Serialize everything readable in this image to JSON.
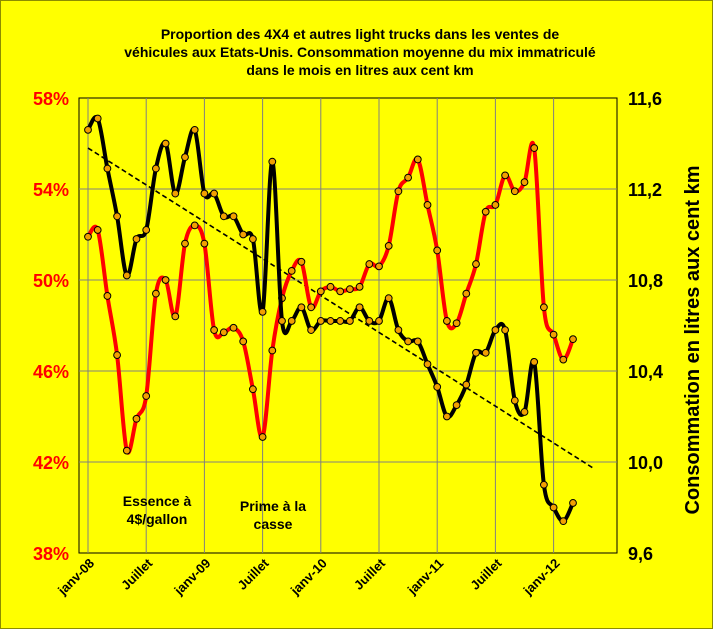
{
  "chart_data": {
    "type": "line",
    "title": [
      "Proportion des 4X4 et autres  light trucks  dans les ventes de",
      "véhicules aux Etats-Unis. Consommation moyenne du mix immatriculé",
      "dans le mois en litres  aux cent km"
    ],
    "ylabel_right": "Consommation en litres aux cent km",
    "x_tick_labels": [
      "janv-08",
      "Juillet",
      "janv-09",
      "Juillet",
      "janv-10",
      "Juillet",
      "janv-11",
      "Juillet",
      "janv-12"
    ],
    "y_left": {
      "ticks": [
        "38%",
        "42%",
        "46%",
        "50%",
        "54%",
        "58%"
      ],
      "ylim": [
        38,
        58
      ],
      "color": "#ff0000"
    },
    "y_right": {
      "ticks": [
        "9,6",
        "10,0",
        "10,4",
        "10,8",
        "11,2",
        "11,6"
      ],
      "ylim": [
        9.6,
        11.6
      ],
      "color": "#000000"
    },
    "grid": true,
    "annotations": [
      {
        "lines": [
          "Essence à",
          "4$/gallon"
        ]
      },
      {
        "lines": [
          "Prime à la",
          "casse"
        ]
      }
    ],
    "series": [
      {
        "color": "#ff0000",
        "axis": "left",
        "x": [
          0,
          1,
          2,
          3,
          4,
          5,
          6,
          7,
          8,
          9,
          10,
          11,
          12,
          13,
          14,
          15,
          16,
          17,
          18,
          19,
          20,
          21,
          22,
          23,
          24,
          25,
          26,
          27,
          28,
          29,
          30,
          31,
          32,
          33,
          34,
          35,
          36,
          37,
          38,
          39,
          40,
          41,
          42,
          43,
          44,
          45,
          46,
          47,
          48,
          49,
          50
        ],
        "values": [
          51.9,
          52.2,
          49.3,
          46.7,
          42.5,
          43.9,
          44.9,
          49.4,
          50.0,
          48.4,
          51.6,
          52.4,
          51.6,
          47.8,
          47.7,
          47.9,
          47.3,
          45.2,
          43.1,
          46.9,
          49.2,
          50.4,
          50.8,
          48.8,
          49.5,
          49.7,
          49.5,
          49.6,
          49.7,
          50.7,
          50.6,
          51.5,
          53.9,
          54.5,
          55.3,
          53.3,
          51.3,
          48.2,
          48.1,
          49.4,
          50.7,
          53.0,
          53.3,
          54.6,
          53.9,
          54.3,
          55.8,
          48.8,
          47.6,
          46.5,
          47.4
        ]
      },
      {
        "color": "#000000",
        "axis": "right",
        "x": [
          0,
          1,
          2,
          3,
          4,
          5,
          6,
          7,
          8,
          9,
          10,
          11,
          12,
          13,
          14,
          15,
          16,
          17,
          18,
          19,
          20,
          21,
          22,
          23,
          24,
          25,
          26,
          27,
          28,
          29,
          30,
          31,
          32,
          33,
          34,
          35,
          36,
          37,
          38,
          39,
          40,
          41,
          42,
          43,
          44,
          45,
          46,
          47,
          48,
          49,
          50
        ],
        "values": [
          11.46,
          11.51,
          11.29,
          11.08,
          10.82,
          10.98,
          11.02,
          11.29,
          11.4,
          11.18,
          11.34,
          11.46,
          11.18,
          11.18,
          11.08,
          11.08,
          11.0,
          10.98,
          10.66,
          11.32,
          10.62,
          10.62,
          10.68,
          10.58,
          10.62,
          10.62,
          10.62,
          10.62,
          10.68,
          10.62,
          10.62,
          10.72,
          10.58,
          10.53,
          10.53,
          10.43,
          10.33,
          10.2,
          10.25,
          10.34,
          10.48,
          10.48,
          10.58,
          10.58,
          10.27,
          10.22,
          10.44,
          9.9,
          9.8,
          9.74,
          9.82
        ]
      }
    ],
    "trendline": {
      "style": "dashed",
      "axis": "right",
      "x": [
        0,
        52.2
      ],
      "values": [
        11.38,
        9.97
      ]
    }
  }
}
